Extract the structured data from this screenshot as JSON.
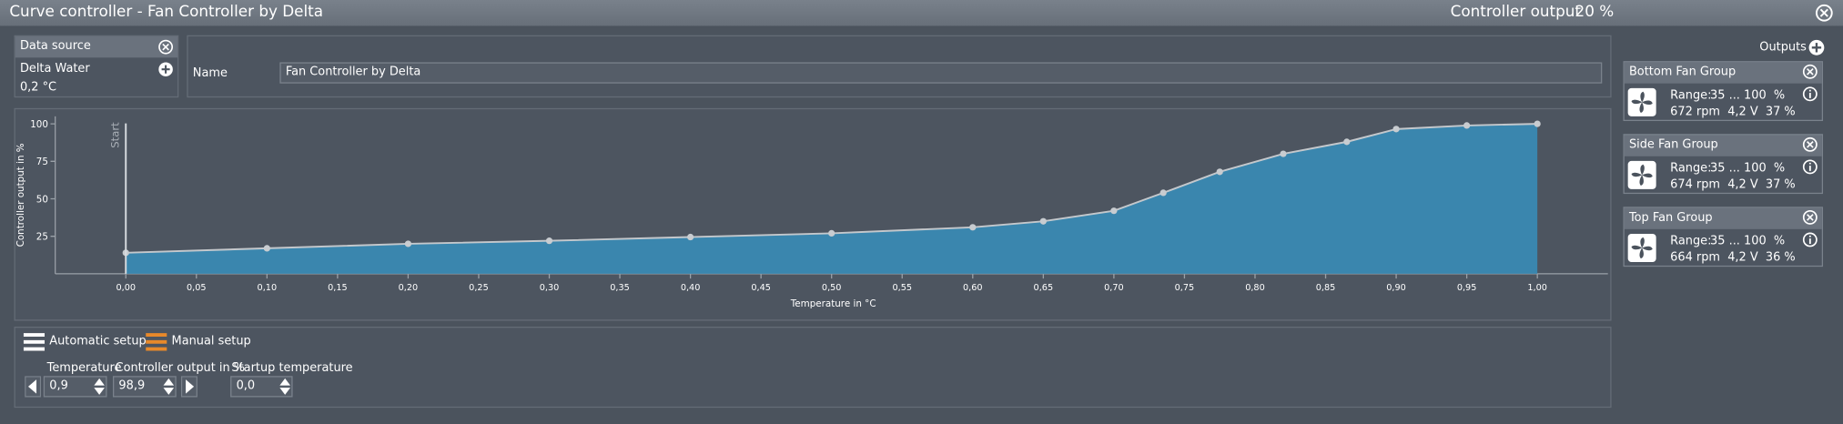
{
  "header": {
    "title": "Curve controller  -  Fan Controller by Delta",
    "output_label": "Controller output",
    "output_value": "20 %"
  },
  "data_source": {
    "title": "Data source",
    "sensor": "Delta Water",
    "value": "0,2 °C"
  },
  "name_field": {
    "label": "Name",
    "value": "Fan Controller by Delta"
  },
  "chart_data": {
    "type": "area",
    "x_label": "Temperature in °C",
    "y_label": "Controller output in %",
    "start_label": "Start",
    "x": [
      0,
      0.1,
      0.2,
      0.3,
      0.4,
      0.5,
      0.6,
      0.65,
      0.7,
      0.735,
      0.775,
      0.82,
      0.865,
      0.9,
      0.95,
      1.0
    ],
    "values": [
      14,
      17,
      20,
      22,
      24.5,
      27,
      31,
      35,
      42,
      54,
      68,
      80,
      88,
      96.5,
      98.9,
      100
    ],
    "xlim": [
      -0.05,
      1.05
    ],
    "ylim": [
      0,
      105
    ],
    "xticks": [
      {
        "value": 0,
        "label": "0,00"
      },
      {
        "value": 0.05,
        "label": "0,05"
      },
      {
        "value": 0.1,
        "label": "0,10"
      },
      {
        "value": 0.15,
        "label": "0,15"
      },
      {
        "value": 0.2,
        "label": "0,20"
      },
      {
        "value": 0.25,
        "label": "0,25"
      },
      {
        "value": 0.3,
        "label": "0,30"
      },
      {
        "value": 0.35,
        "label": "0,35"
      },
      {
        "value": 0.4,
        "label": "0,40"
      },
      {
        "value": 0.45,
        "label": "0,45"
      },
      {
        "value": 0.5,
        "label": "0,50"
      },
      {
        "value": 0.55,
        "label": "0,55"
      },
      {
        "value": 0.6,
        "label": "0,60"
      },
      {
        "value": 0.65,
        "label": "0,65"
      },
      {
        "value": 0.7,
        "label": "0,70"
      },
      {
        "value": 0.75,
        "label": "0,75"
      },
      {
        "value": 0.8,
        "label": "0,80"
      },
      {
        "value": 0.85,
        "label": "0,85"
      },
      {
        "value": 0.9,
        "label": "0,90"
      },
      {
        "value": 0.95,
        "label": "0,95"
      },
      {
        "value": 1.0,
        "label": "1,00"
      }
    ],
    "yticks": [
      25,
      50,
      75,
      100
    ],
    "line_color": "#c4c8cc",
    "fill_color": "#3a86ae",
    "point_color": "#c8ccd0"
  },
  "outputs": {
    "title": "Outputs",
    "items": [
      {
        "name": "Bottom Fan Group",
        "range_label": "Range:",
        "range": "35 ... 100  %",
        "status": "672 rpm  4,2 V  37 %"
      },
      {
        "name": "Side Fan Group",
        "range_label": "Range:",
        "range": "35 ... 100  %",
        "status": "674 rpm  4,2 V  37 %"
      },
      {
        "name": "Top Fan Group",
        "range_label": "Range:",
        "range": "35 ... 100  %",
        "status": "664 rpm  4,2 V  36 %"
      }
    ]
  },
  "setup": {
    "automatic": "Automatic setup",
    "manual": "Manual setup",
    "fields": [
      {
        "label": "Temperature",
        "value": "0,9"
      },
      {
        "label": "Controller output in %",
        "value": "98,9"
      },
      {
        "label": "Startup temperature",
        "value": "0,0"
      }
    ]
  }
}
